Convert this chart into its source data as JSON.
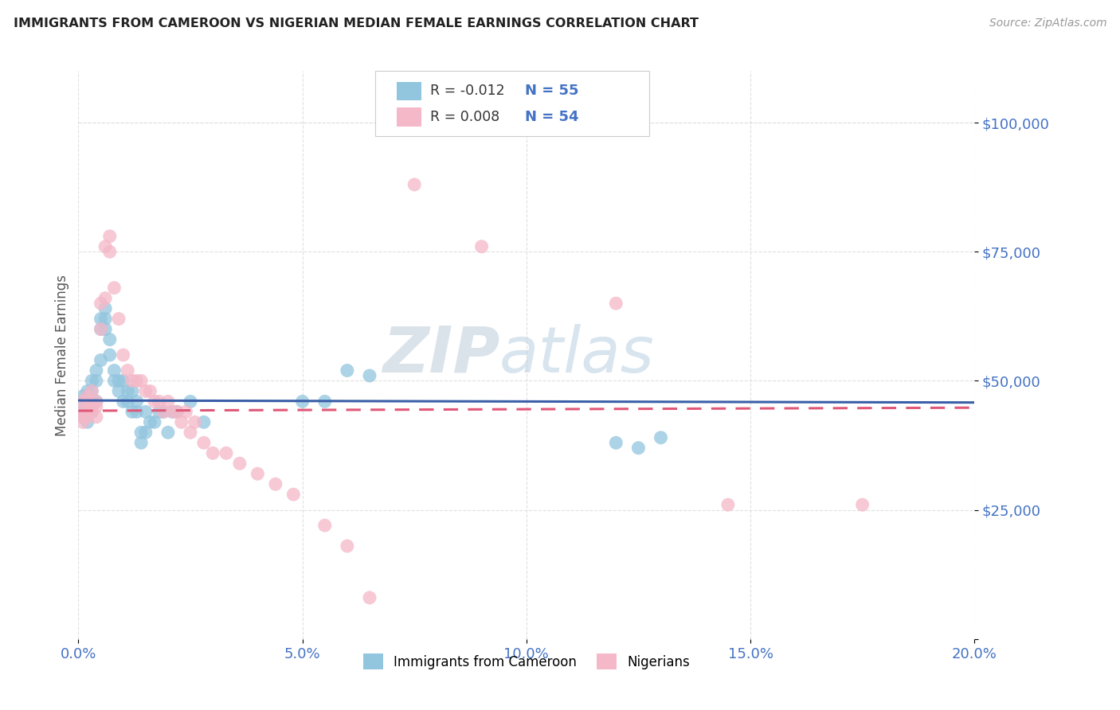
{
  "title": "IMMIGRANTS FROM CAMEROON VS NIGERIAN MEDIAN FEMALE EARNINGS CORRELATION CHART",
  "source": "Source: ZipAtlas.com",
  "ylabel": "Median Female Earnings",
  "xlim": [
    0.0,
    0.2
  ],
  "ylim": [
    0,
    110000
  ],
  "blue_R": "-0.012",
  "blue_N": "55",
  "pink_R": "0.008",
  "pink_N": "54",
  "legend_label_blue": "Immigrants from Cameroon",
  "legend_label_pink": "Nigerians",
  "blue_color": "#92c5de",
  "pink_color": "#f4b8c8",
  "blue_line_color": "#3a5fa8",
  "pink_line_color": "#e05878",
  "axis_color": "#4472c4",
  "watermark": "ZIPatlas",
  "watermark_color": "#d0dce8",
  "background_color": "#ffffff",
  "grid_color": "#e0e0e0",
  "title_color": "#222222",
  "ylabel_color": "#555555",
  "blue_scatter": [
    [
      0.001,
      47000
    ],
    [
      0.001,
      44000
    ],
    [
      0.001,
      43000
    ],
    [
      0.001,
      46000
    ],
    [
      0.002,
      48000
    ],
    [
      0.002,
      45000
    ],
    [
      0.002,
      42000
    ],
    [
      0.002,
      47000
    ],
    [
      0.003,
      50000
    ],
    [
      0.003,
      48000
    ],
    [
      0.003,
      44000
    ],
    [
      0.003,
      46000
    ],
    [
      0.004,
      52000
    ],
    [
      0.004,
      50000
    ],
    [
      0.004,
      46000
    ],
    [
      0.005,
      54000
    ],
    [
      0.005,
      60000
    ],
    [
      0.005,
      62000
    ],
    [
      0.006,
      64000
    ],
    [
      0.006,
      62000
    ],
    [
      0.006,
      60000
    ],
    [
      0.007,
      58000
    ],
    [
      0.007,
      55000
    ],
    [
      0.008,
      52000
    ],
    [
      0.008,
      50000
    ],
    [
      0.009,
      50000
    ],
    [
      0.009,
      48000
    ],
    [
      0.01,
      50000
    ],
    [
      0.01,
      46000
    ],
    [
      0.011,
      48000
    ],
    [
      0.011,
      46000
    ],
    [
      0.012,
      48000
    ],
    [
      0.012,
      44000
    ],
    [
      0.013,
      46000
    ],
    [
      0.013,
      44000
    ],
    [
      0.014,
      40000
    ],
    [
      0.014,
      38000
    ],
    [
      0.015,
      40000
    ],
    [
      0.015,
      44000
    ],
    [
      0.016,
      42000
    ],
    [
      0.017,
      42000
    ],
    [
      0.018,
      44000
    ],
    [
      0.019,
      44000
    ],
    [
      0.02,
      40000
    ],
    [
      0.021,
      44000
    ],
    [
      0.022,
      44000
    ],
    [
      0.025,
      46000
    ],
    [
      0.028,
      42000
    ],
    [
      0.05,
      46000
    ],
    [
      0.055,
      46000
    ],
    [
      0.06,
      52000
    ],
    [
      0.065,
      51000
    ],
    [
      0.12,
      38000
    ],
    [
      0.125,
      37000
    ],
    [
      0.13,
      39000
    ]
  ],
  "pink_scatter": [
    [
      0.001,
      46000
    ],
    [
      0.001,
      44000
    ],
    [
      0.001,
      43000
    ],
    [
      0.001,
      42000
    ],
    [
      0.002,
      47000
    ],
    [
      0.002,
      46000
    ],
    [
      0.002,
      44000
    ],
    [
      0.002,
      43000
    ],
    [
      0.003,
      48000
    ],
    [
      0.003,
      45000
    ],
    [
      0.003,
      44000
    ],
    [
      0.004,
      46000
    ],
    [
      0.004,
      45000
    ],
    [
      0.004,
      43000
    ],
    [
      0.005,
      60000
    ],
    [
      0.005,
      65000
    ],
    [
      0.006,
      66000
    ],
    [
      0.006,
      76000
    ],
    [
      0.007,
      78000
    ],
    [
      0.007,
      75000
    ],
    [
      0.008,
      68000
    ],
    [
      0.009,
      62000
    ],
    [
      0.01,
      55000
    ],
    [
      0.011,
      52000
    ],
    [
      0.012,
      50000
    ],
    [
      0.013,
      50000
    ],
    [
      0.014,
      50000
    ],
    [
      0.015,
      48000
    ],
    [
      0.016,
      48000
    ],
    [
      0.017,
      46000
    ],
    [
      0.018,
      46000
    ],
    [
      0.019,
      44000
    ],
    [
      0.02,
      46000
    ],
    [
      0.021,
      44000
    ],
    [
      0.022,
      44000
    ],
    [
      0.023,
      42000
    ],
    [
      0.024,
      44000
    ],
    [
      0.025,
      40000
    ],
    [
      0.026,
      42000
    ],
    [
      0.028,
      38000
    ],
    [
      0.03,
      36000
    ],
    [
      0.033,
      36000
    ],
    [
      0.036,
      34000
    ],
    [
      0.04,
      32000
    ],
    [
      0.044,
      30000
    ],
    [
      0.048,
      28000
    ],
    [
      0.055,
      22000
    ],
    [
      0.06,
      18000
    ],
    [
      0.065,
      8000
    ],
    [
      0.075,
      88000
    ],
    [
      0.09,
      76000
    ],
    [
      0.12,
      65000
    ],
    [
      0.145,
      26000
    ],
    [
      0.175,
      26000
    ]
  ]
}
